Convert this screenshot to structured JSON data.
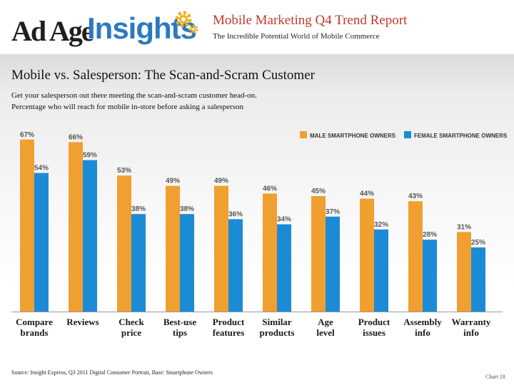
{
  "header": {
    "logo_part1": "Ad Age",
    "logo_part2": "Insights",
    "report_title": "Mobile Marketing Q4 Trend Report",
    "report_subtitle": "The Incredible Potential World of Mobile Commerce"
  },
  "slide": {
    "title": "Mobile vs. Salesperson: The Scan-and-Scram Customer",
    "desc_line1": "Get your salesperson out there meeting the scan-and-scram customer head-on.",
    "desc_line2": "Percentage who will reach for mobile in-store before asking a salesperson",
    "source": "Source: Insight Express, Q3 2011 Digital Consumer Portrait, Base: Smartphone Owners",
    "chart_number": "Chart 18"
  },
  "colors": {
    "male": "#f0a030",
    "female": "#1c8bd6",
    "title_red": "#c0392b",
    "brand_blue": "#2b7ac0"
  },
  "chart_data": {
    "type": "bar",
    "title": "Mobile vs. Salesperson: The Scan-and-Scram Customer",
    "xlabel": "",
    "ylabel": "",
    "ylim": [
      0,
      70
    ],
    "grid": false,
    "legend_position": "top-right",
    "categories": [
      [
        "Compare",
        "brands"
      ],
      [
        "Reviews"
      ],
      [
        "Check",
        "price"
      ],
      [
        "Best-use",
        "tips"
      ],
      [
        "Product",
        "features"
      ],
      [
        "Similar",
        "products"
      ],
      [
        "Age",
        "level"
      ],
      [
        "Product",
        "issues"
      ],
      [
        "Assembly",
        "info"
      ],
      [
        "Warranty",
        "info"
      ]
    ],
    "series": [
      {
        "name": "MALE SMARTPHONE OWNERS",
        "values": [
          67,
          66,
          53,
          49,
          49,
          46,
          45,
          44,
          43,
          31
        ]
      },
      {
        "name": "FEMALE SMARTPHONE OWNERS",
        "values": [
          54,
          59,
          38,
          38,
          36,
          34,
          37,
          32,
          28,
          25
        ]
      }
    ],
    "value_suffix": "%"
  }
}
